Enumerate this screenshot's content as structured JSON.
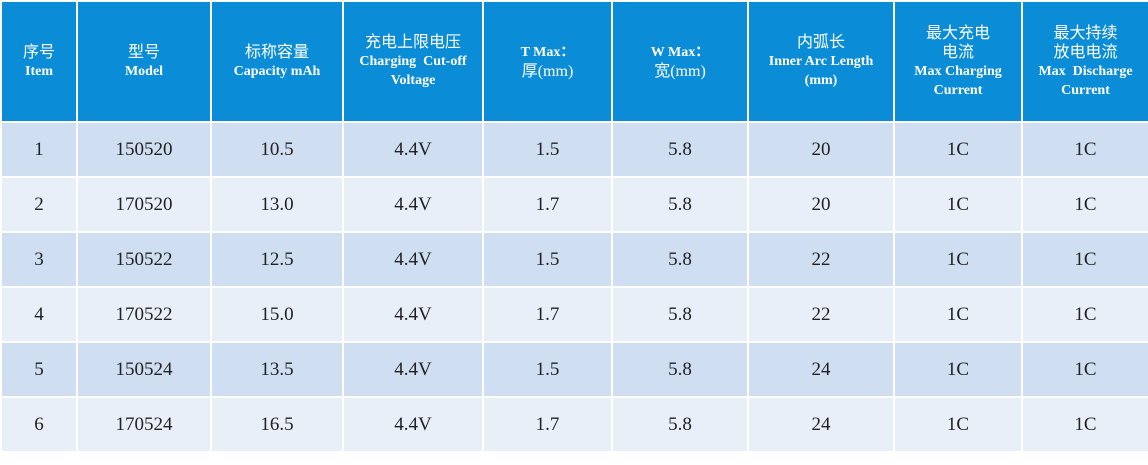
{
  "table": {
    "header": [
      [
        "序号",
        "Item"
      ],
      [
        "型号",
        "Model"
      ],
      [
        "标称容量",
        "Capacity mAh"
      ],
      [
        "充电上限电压",
        "Charging  Cut-off",
        "Voltage"
      ],
      [
        "T Max：",
        "厚(mm)"
      ],
      [
        "W Max：",
        "宽(mm)"
      ],
      [
        "内弧长",
        "Inner Arc Length",
        "(mm)"
      ],
      [
        "最大充电",
        "电流",
        "Max Charging",
        "Current"
      ],
      [
        "最大持续",
        "放电电流",
        "Max  Discharge",
        "Current"
      ]
    ],
    "rows": [
      [
        "1",
        "150520",
        "10.5",
        "4.4V",
        "1.5",
        "5.8",
        "20",
        "1C",
        "1C"
      ],
      [
        "2",
        "170520",
        "13.0",
        "4.4V",
        "1.7",
        "5.8",
        "20",
        "1C",
        "1C"
      ],
      [
        "3",
        "150522",
        "12.5",
        "4.4V",
        "1.5",
        "5.8",
        "22",
        "1C",
        "1C"
      ],
      [
        "4",
        "170522",
        "15.0",
        "4.4V",
        "1.7",
        "5.8",
        "22",
        "1C",
        "1C"
      ],
      [
        "5",
        "150524",
        "13.5",
        "4.4V",
        "1.5",
        "5.8",
        "24",
        "1C",
        "1C"
      ],
      [
        "6",
        "170524",
        "16.5",
        "4.4V",
        "1.7",
        "5.8",
        "24",
        "1C",
        "1C"
      ]
    ]
  }
}
